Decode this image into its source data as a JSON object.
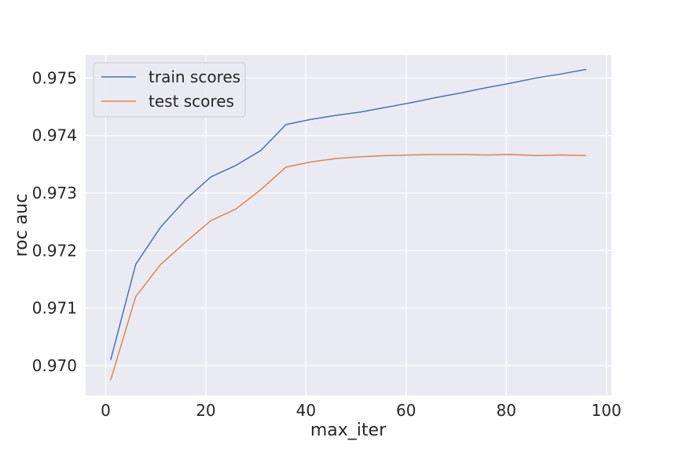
{
  "chart_data": {
    "type": "line",
    "title": "",
    "xlabel": "max_iter",
    "ylabel": "roc auc",
    "xlim": [
      -4,
      101
    ],
    "ylim": [
      0.96948,
      0.9754
    ],
    "x_ticks": [
      0,
      20,
      40,
      60,
      80,
      100
    ],
    "x_tick_labels": [
      "0",
      "20",
      "40",
      "60",
      "80",
      "100"
    ],
    "y_ticks": [
      0.97,
      0.971,
      0.972,
      0.973,
      0.974,
      0.975
    ],
    "y_tick_labels": [
      "0.970",
      "0.971",
      "0.972",
      "0.973",
      "0.974",
      "0.975"
    ],
    "grid": true,
    "legend_position": "top-left",
    "x": [
      1,
      6,
      11,
      16,
      21,
      26,
      31,
      36,
      41,
      46,
      51,
      56,
      61,
      66,
      71,
      76,
      81,
      86,
      91,
      96
    ],
    "series": [
      {
        "name": "train scores",
        "color": "#4c72b0",
        "values": [
          0.9701,
          0.97176,
          0.97241,
          0.97289,
          0.97328,
          0.97348,
          0.97374,
          0.97419,
          0.97428,
          0.97435,
          0.97441,
          0.97449,
          0.97457,
          0.97466,
          0.97474,
          0.97483,
          0.97491,
          0.975,
          0.97507,
          0.97515
        ]
      },
      {
        "name": "test scores",
        "color": "#dd8452",
        "values": [
          0.96975,
          0.9712,
          0.97176,
          0.97215,
          0.97252,
          0.97272,
          0.97306,
          0.97345,
          0.97354,
          0.9736,
          0.97363,
          0.97365,
          0.97366,
          0.97367,
          0.97367,
          0.97366,
          0.97367,
          0.97365,
          0.97366,
          0.97365
        ]
      }
    ]
  },
  "style": {
    "plot_background": "#eaeaf2",
    "grid_color": "#ffffff",
    "text_color": "#262626"
  }
}
